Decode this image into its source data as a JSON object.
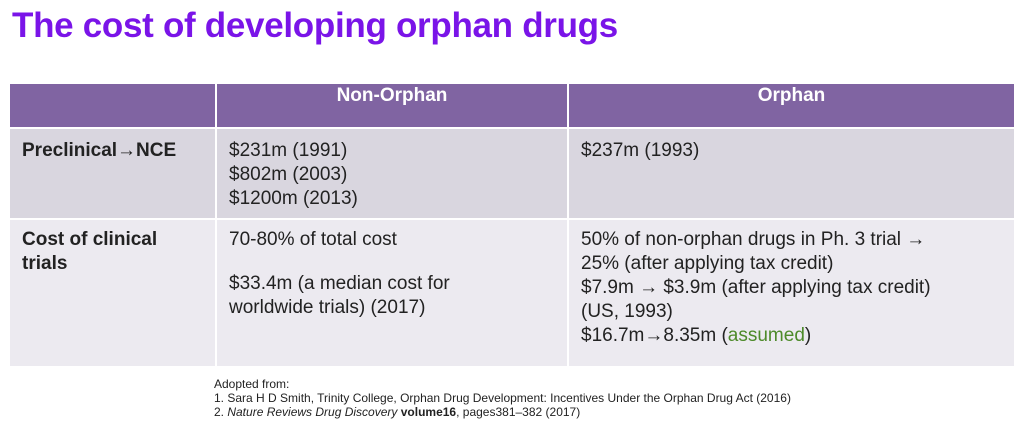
{
  "title": "The cost of developing orphan drugs",
  "table": {
    "headers": [
      "",
      "Non-Orphan",
      "Orphan"
    ],
    "rows": [
      {
        "label": "Preclinical→NCE",
        "non_orphan": [
          "$231m (1991)",
          "$802m (2003)",
          "$1200m (2013)"
        ],
        "orphan": [
          "$237m (1993)"
        ]
      },
      {
        "label_lines": [
          "Cost of clinical",
          "trials"
        ],
        "non_orphan": [
          "70-80% of total cost",
          "$33.4m (a median cost for",
          "worldwide trials) (2017)"
        ],
        "orphan": [
          "50% of non-orphan drugs in Ph. 3 trial →",
          "25% (after applying tax credit)",
          "$7.9m → $3.9m (after applying tax credit)",
          "(US, 1993)",
          "$16.7m→8.35m (",
          "assumed",
          ")"
        ]
      }
    ]
  },
  "footnotes": {
    "intro": "Adopted from:",
    "ref1": "1. Sara H D Smith, Trinity College, Orphan Drug Development: Incentives Under the Orphan Drug Act (2016)",
    "ref2_prefix": "2. ",
    "ref2_journal": "Nature Reviews Drug Discovery",
    "ref2_space": " ",
    "ref2_volume": "volume16",
    "ref2_pages": ", pages381–382 (2017)"
  },
  "colors": {
    "title": "#7a14e8",
    "header_bg": "#8064a2",
    "row1_bg": "#d9d6df",
    "row2_bg": "#eceaf0",
    "assumed": "#4d8a2a"
  }
}
